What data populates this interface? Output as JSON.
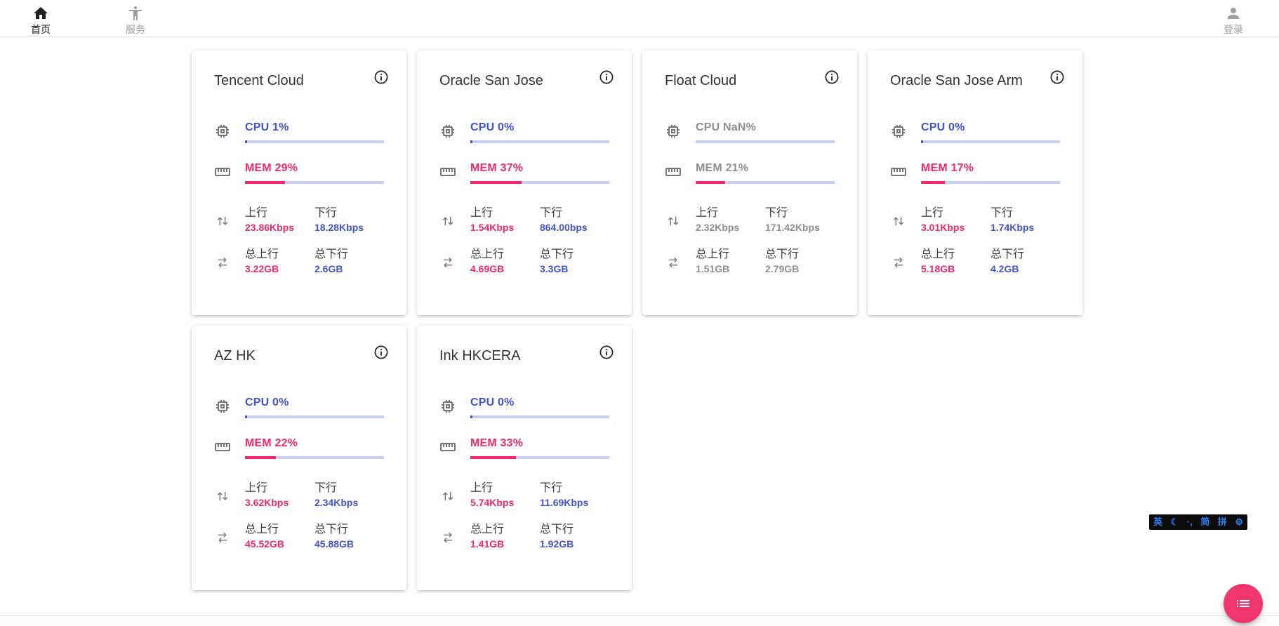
{
  "nav": {
    "home_label": "首页",
    "services_label": "服务",
    "login_label": "登录"
  },
  "card_labels": {
    "cpu": "CPU",
    "mem": "MEM",
    "up": "上行",
    "down": "下行",
    "total_up": "总上行",
    "total_down": "总下行"
  },
  "cards": [
    {
      "name": "Tencent Cloud",
      "cpu_pct": "1",
      "mem_pct": "29",
      "up": "23.86Kbps",
      "down": "18.28Kbps",
      "total_up": "3.22GB",
      "total_down": "2.6GB",
      "offline": false
    },
    {
      "name": "Oracle San Jose",
      "cpu_pct": "0",
      "mem_pct": "37",
      "up": "1.54Kbps",
      "down": "864.00bps",
      "total_up": "4.69GB",
      "total_down": "3.3GB",
      "offline": false
    },
    {
      "name": "Float Cloud",
      "cpu_pct": "NaN",
      "mem_pct": "21",
      "up": "2.32Kbps",
      "down": "171.42Kbps",
      "total_up": "1.51GB",
      "total_down": "2.79GB",
      "offline": true
    },
    {
      "name": "Oracle San Jose Arm",
      "cpu_pct": "0",
      "mem_pct": "17",
      "up": "3.01Kbps",
      "down": "1.74Kbps",
      "total_up": "5.18GB",
      "total_down": "4.2GB",
      "offline": false
    },
    {
      "name": "AZ HK",
      "cpu_pct": "0",
      "mem_pct": "22",
      "up": "3.62Kbps",
      "down": "2.34Kbps",
      "total_up": "45.52GB",
      "total_down": "45.88GB",
      "offline": false
    },
    {
      "name": "Ink HKCERA",
      "cpu_pct": "0",
      "mem_pct": "33",
      "up": "5.74Kbps",
      "down": "11.69Kbps",
      "total_up": "1.41GB",
      "total_down": "1.92GB",
      "offline": false
    }
  ],
  "ime_bar": {
    "items": [
      "英",
      "☾",
      "·,",
      "简",
      "拼",
      "⚙"
    ]
  },
  "icons": {
    "fab": "list-icon",
    "card_rows": [
      "cpu-chip-icon",
      "ruler-icon",
      "arrows-vertical-icon",
      "arrows-horizontal-icon"
    ]
  },
  "colors": {
    "pink": "#f0296d",
    "indigo": "#4353c5",
    "bar_track": "#c9cdee",
    "offline_gray": "#8f8f8f",
    "icon_gray": "#757575",
    "fab_pink": "#f0356f",
    "ime_blue": "#2b7df0"
  }
}
